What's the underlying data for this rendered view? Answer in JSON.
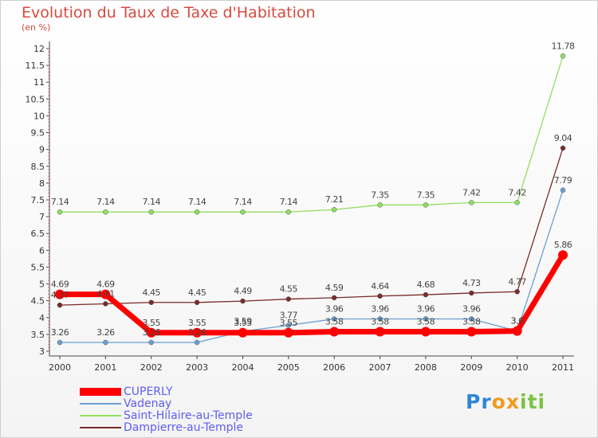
{
  "title": "Evolution du Taux de Taxe d'Habitation",
  "subtitle": "(en %)",
  "logo": [
    "P",
    "r",
    "o",
    "x",
    "i",
    "t",
    "i"
  ],
  "colors": {
    "title": "#d64a3f",
    "legend_text": "#5d5df2",
    "axis": "#444444",
    "tick_text": "#333333",
    "logo": [
      "#2f86d6",
      "#2f86d6",
      "#f29a1e",
      "#f29a1e",
      "#7cc242",
      "#7cc242",
      "#7cc242"
    ]
  },
  "chart_data": {
    "type": "line",
    "title": "Evolution du Taux de Taxe d'Habitation",
    "ylabel": "(en %)",
    "xlabel": "",
    "x": [
      "2000",
      "2001",
      "2002",
      "2003",
      "2004",
      "2005",
      "2006",
      "2007",
      "2008",
      "2009",
      "2010",
      "2011"
    ],
    "ylim": [
      3,
      12
    ],
    "yticks": [
      "3",
      "3.5",
      "4",
      "4.5",
      "5",
      "5.5",
      "6",
      "6.5",
      "7",
      "7.5",
      "8",
      "8.5",
      "9",
      "9.5",
      "10",
      "10.5",
      "11",
      "11.5",
      "12"
    ],
    "grid": false,
    "legend_position": "bottom-left",
    "series": [
      {
        "name": "CUPERLY",
        "color": "#ff0000",
        "values": [
          4.69,
          4.69,
          3.55,
          3.55,
          3.55,
          3.55,
          3.58,
          3.58,
          3.58,
          3.58,
          3.6,
          5.86
        ],
        "labels": [
          "4.69",
          "4.69",
          "3.55",
          "3.55",
          "3.55",
          "3.55",
          "3.58",
          "3.58",
          "3.58",
          "3.58",
          "3.6",
          "5.86"
        ]
      },
      {
        "name": "Vadenay",
        "color": "#6a9fd4",
        "values": [
          3.26,
          3.26,
          3.26,
          3.26,
          3.59,
          3.77,
          3.96,
          3.96,
          3.96,
          3.96,
          3.6,
          7.79
        ],
        "labels": [
          "3.26",
          "3.26",
          "3.26",
          "3.26",
          "3.59",
          "3.77",
          "3.96",
          "3.96",
          "3.96",
          "3.96",
          "3.6",
          "7.79"
        ]
      },
      {
        "name": "Saint-Hilaire-au-Temple",
        "color": "#90e060",
        "values": [
          7.14,
          7.14,
          7.14,
          7.14,
          7.14,
          7.14,
          7.21,
          7.35,
          7.35,
          7.42,
          7.42,
          11.78
        ],
        "labels": [
          "7.14",
          "7.14",
          "7.14",
          "7.14",
          "7.14",
          "7.14",
          "7.21",
          "7.35",
          "7.35",
          "7.42",
          "7.42",
          "11.78"
        ]
      },
      {
        "name": "Dampierre-au-Temple",
        "color": "#7a2a2a",
        "values": [
          4.37,
          4.41,
          4.45,
          4.45,
          4.49,
          4.55,
          4.59,
          4.64,
          4.68,
          4.73,
          4.77,
          9.04
        ],
        "labels": [
          "4.37",
          "4.41",
          "4.45",
          "4.45",
          "4.49",
          "4.55",
          "4.59",
          "4.64",
          "4.68",
          "4.73",
          "4.77",
          "9.04"
        ]
      }
    ]
  }
}
